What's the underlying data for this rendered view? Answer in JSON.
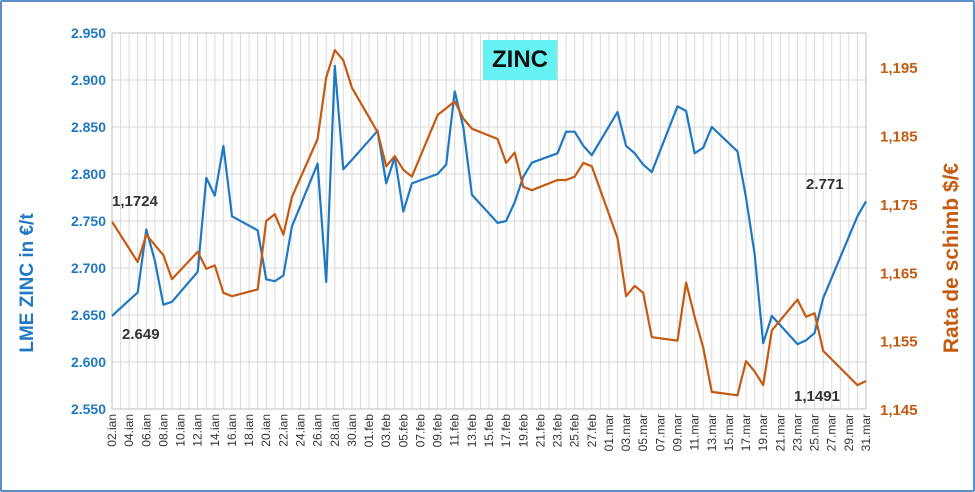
{
  "chart_data": {
    "type": "line",
    "title": "ZINC",
    "ylabel": "LME ZINC in €/t",
    "y2label": "Rata de schimb $/€",
    "ylim": [
      2550,
      2950
    ],
    "y2lim": [
      1.145,
      1.2
    ],
    "yticks": [
      "2.550",
      "2.600",
      "2.650",
      "2.700",
      "2.750",
      "2.800",
      "2.850",
      "2.900",
      "2.950"
    ],
    "y2ticks": [
      "1,145",
      "1,155",
      "1,165",
      "1,175",
      "1,185",
      "1,195"
    ],
    "y2tick_values": [
      1.145,
      1.155,
      1.165,
      1.175,
      1.185,
      1.195
    ],
    "grid": true,
    "x_range": [
      1,
      89
    ],
    "xticks": [
      "02.ian",
      "04.ian",
      "06.ian",
      "08.ian",
      "10.ian",
      "12.ian",
      "14.ian",
      "16.ian",
      "18.ian",
      "20.ian",
      "22.ian",
      "24.ian",
      "26.ian",
      "28.ian",
      "30.ian",
      "01.feb",
      "03.feb",
      "05.feb",
      "07.feb",
      "09.feb",
      "11.feb",
      "13.feb",
      "15.feb",
      "17.feb",
      "19.feb",
      "21.feb",
      "23.feb",
      "25.feb",
      "27.feb",
      "01.mar",
      "03.mar",
      "05.mar",
      "07.mar",
      "09.mar",
      "11.mar",
      "13.mar",
      "15.mar",
      "17.mar",
      "19.mar",
      "21.mar",
      "23.mar",
      "25.mar",
      "27.mar",
      "29.mar",
      "31.mar"
    ],
    "xtick_values": [
      1,
      3,
      5,
      7,
      9,
      11,
      13,
      15,
      17,
      19,
      21,
      23,
      25,
      27,
      29,
      31,
      33,
      35,
      37,
      39,
      41,
      43,
      45,
      47,
      49,
      51,
      53,
      55,
      57,
      59,
      61,
      63,
      65,
      67,
      69,
      71,
      73,
      75,
      77,
      79,
      81,
      83,
      85,
      87,
      89
    ],
    "series": [
      {
        "name": "LME ZINC in €/t",
        "axis": "left",
        "color": "#1f78c2",
        "x": [
          1,
          4,
          5,
          6,
          7,
          8,
          11,
          12,
          13,
          14,
          15,
          18,
          19,
          20,
          21,
          22,
          25,
          26,
          27,
          28,
          29,
          32,
          33,
          34,
          35,
          36,
          39,
          40,
          41,
          42,
          43,
          46,
          47,
          48,
          49,
          50,
          53,
          54,
          55,
          56,
          57,
          60,
          61,
          62,
          63,
          64,
          67,
          68,
          69,
          70,
          71,
          74,
          75,
          76,
          77,
          78,
          81,
          82,
          83,
          84,
          88,
          89
        ],
        "y": [
          2649,
          2674,
          2741,
          2708,
          2661,
          2664,
          2696,
          2796,
          2777,
          2830,
          2755,
          2740,
          2688,
          2686,
          2692,
          2744,
          2811,
          2685,
          2915,
          2805,
          2815,
          2846,
          2790,
          2818,
          2760,
          2790,
          2800,
          2810,
          2888,
          2850,
          2778,
          2748,
          2750,
          2770,
          2797,
          2812,
          2822,
          2845,
          2845,
          2830,
          2820,
          2866,
          2830,
          2822,
          2810,
          2802,
          2872,
          2867,
          2822,
          2828,
          2850,
          2824,
          2775,
          2715,
          2620,
          2649,
          2619,
          2623,
          2631,
          2668,
          2755,
          2771
        ]
      },
      {
        "name": "Rata de schimb $/€",
        "axis": "right",
        "color": "#c55a11",
        "x": [
          1,
          4,
          5,
          6,
          7,
          8,
          11,
          12,
          13,
          14,
          15,
          18,
          19,
          20,
          21,
          22,
          25,
          26,
          27,
          28,
          29,
          32,
          33,
          34,
          35,
          36,
          39,
          40,
          41,
          42,
          43,
          46,
          47,
          48,
          49,
          50,
          53,
          54,
          55,
          56,
          57,
          60,
          61,
          62,
          63,
          64,
          67,
          68,
          69,
          70,
          71,
          74,
          75,
          76,
          77,
          78,
          81,
          82,
          83,
          84,
          88,
          89
        ],
        "y": [
          1.1724,
          1.1665,
          1.1705,
          1.169,
          1.1675,
          1.164,
          1.168,
          1.1655,
          1.166,
          1.162,
          1.1615,
          1.1625,
          1.1725,
          1.1735,
          1.1705,
          1.176,
          1.1845,
          1.1935,
          1.1975,
          1.196,
          1.192,
          1.1855,
          1.1805,
          1.182,
          1.18,
          1.179,
          1.188,
          1.189,
          1.19,
          1.1875,
          1.186,
          1.1845,
          1.181,
          1.1825,
          1.1775,
          1.177,
          1.1785,
          1.1785,
          1.179,
          1.181,
          1.1805,
          1.17,
          1.1615,
          1.163,
          1.162,
          1.1555,
          1.155,
          1.1635,
          1.1585,
          1.154,
          1.1475,
          1.147,
          1.152,
          1.1505,
          1.1485,
          1.1565,
          1.161,
          1.1585,
          1.159,
          1.1535,
          1.1485,
          1.1491
        ]
      }
    ],
    "annotations": [
      {
        "text": "1,1724",
        "x": 1,
        "y2": 1.1724
      },
      {
        "text": "2.649",
        "x": 1,
        "y": 2649
      },
      {
        "text": "2.771",
        "x": 89,
        "y": 2771
      },
      {
        "text": "1,1491",
        "x": 89,
        "y2": 1.1491
      }
    ]
  }
}
